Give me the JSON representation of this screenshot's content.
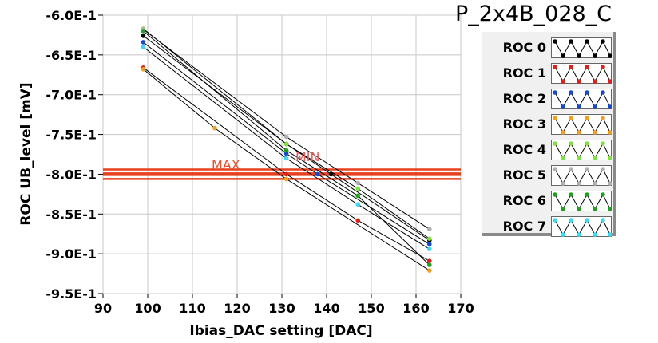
{
  "chart_data": {
    "type": "scatter",
    "title": "P_2x4B_028_C",
    "xlabel": "Ibias_DAC setting [DAC]",
    "ylabel": "ROC UB_level [mV]",
    "xlim": [
      90,
      170
    ],
    "ylim": [
      -0.95,
      -0.6
    ],
    "x_ticks": [
      "90",
      "100",
      "110",
      "120",
      "130",
      "140",
      "150",
      "160",
      "170"
    ],
    "y_ticks": [
      "-6.0E-1",
      "-6.5E-1",
      "-7.0E-1",
      "-7.5E-1",
      "-8.0E-1",
      "-8.5E-1",
      "-9.0E-1",
      "-9.5E-1"
    ],
    "grid": true,
    "legend_position": "right",
    "thresholds": [
      {
        "label": "MAX",
        "values": [
          -0.794,
          -0.799
        ]
      },
      {
        "label": "MIN",
        "values": [
          -0.801,
          -0.806
        ]
      }
    ],
    "threshold_color": "#e8401c",
    "series": [
      {
        "name": "ROC 0",
        "color": "#000000",
        "x": [
          99,
          131,
          141,
          163
        ],
        "y": [
          -0.626,
          -0.762,
          -0.8,
          -0.883
        ]
      },
      {
        "name": "ROC 1",
        "color": "#e0201c",
        "x": [
          99,
          131,
          147,
          163
        ],
        "y": [
          -0.666,
          -0.8,
          -0.858,
          -0.909
        ]
      },
      {
        "name": "ROC 2",
        "color": "#1848d0",
        "x": [
          99,
          131,
          138,
          163
        ],
        "y": [
          -0.634,
          -0.774,
          -0.8,
          -0.888
        ]
      },
      {
        "name": "ROC 3",
        "color": "#f0a020",
        "x": [
          99,
          115,
          131,
          163
        ],
        "y": [
          -0.668,
          -0.742,
          -0.806,
          -0.921
        ]
      },
      {
        "name": "ROC 4",
        "color": "#80e040",
        "x": [
          99,
          131,
          147,
          163
        ],
        "y": [
          -0.617,
          -0.762,
          -0.818,
          -0.881
        ]
      },
      {
        "name": "ROC 5",
        "color": "#b0b0b0",
        "x": [
          99,
          131,
          147,
          163
        ],
        "y": [
          -0.618,
          -0.753,
          -0.811,
          -0.869
        ]
      },
      {
        "name": "ROC 6",
        "color": "#20a020",
        "x": [
          99,
          131,
          147,
          163
        ],
        "y": [
          -0.62,
          -0.77,
          -0.827,
          -0.914
        ]
      },
      {
        "name": "ROC 7",
        "color": "#40d8f0",
        "x": [
          99,
          131,
          147,
          163
        ],
        "y": [
          -0.64,
          -0.78,
          -0.838,
          -0.894
        ]
      }
    ]
  }
}
